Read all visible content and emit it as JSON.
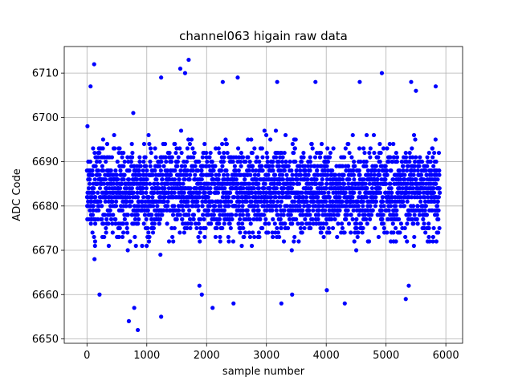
{
  "chart_data": {
    "type": "scatter",
    "title": "channel063 higain raw data",
    "xlabel": "sample number",
    "ylabel": "ADC Code",
    "xlim": [
      -380,
      6280
    ],
    "ylim": [
      6649,
      6716
    ],
    "xticks": [
      0,
      1000,
      2000,
      3000,
      4000,
      5000,
      6000
    ],
    "yticks": [
      6650,
      6660,
      6670,
      6680,
      6690,
      6700,
      6710
    ],
    "grid": true,
    "marker_color": "#0000ff",
    "series": [
      {
        "n_samples": 5900,
        "center": 6683.5,
        "std": 7.0,
        "outliers": [
          [
            120,
            6712
          ],
          [
            60,
            6707
          ],
          [
            1240,
            6709
          ],
          [
            1560,
            6711
          ],
          [
            1640,
            6710
          ],
          [
            1700,
            6713
          ],
          [
            2270,
            6708
          ],
          [
            2520,
            6709
          ],
          [
            3180,
            6708
          ],
          [
            3820,
            6708
          ],
          [
            4930,
            6710
          ],
          [
            4560,
            6708
          ],
          [
            5420,
            6708
          ],
          [
            5500,
            6706
          ],
          [
            5830,
            6707
          ],
          [
            850,
            6652
          ],
          [
            1240,
            6655
          ],
          [
            700,
            6654
          ],
          [
            790,
            6657
          ],
          [
            2100,
            6657
          ],
          [
            2450,
            6658
          ],
          [
            3250,
            6658
          ],
          [
            3430,
            6660
          ],
          [
            4010,
            6661
          ],
          [
            4310,
            6658
          ],
          [
            5330,
            6659
          ],
          [
            210,
            6660
          ],
          [
            5380,
            6662
          ],
          [
            1880,
            6662
          ],
          [
            1920,
            6660
          ]
        ]
      }
    ]
  }
}
